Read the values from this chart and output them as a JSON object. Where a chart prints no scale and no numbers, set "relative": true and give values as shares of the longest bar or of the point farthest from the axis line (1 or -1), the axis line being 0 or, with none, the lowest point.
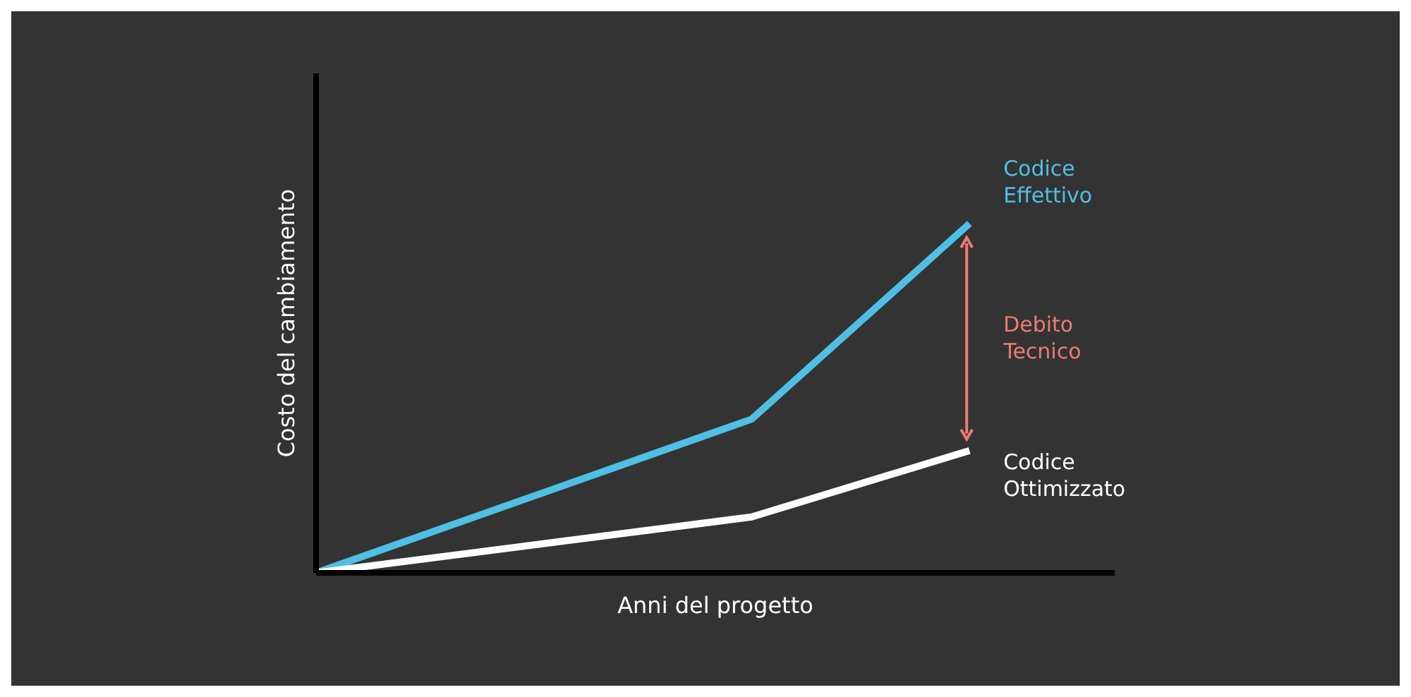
{
  "chart_data": {
    "type": "line",
    "relative": true,
    "xlabel": "Anni del progetto",
    "ylabel": "Costo del cambiamento",
    "categories": [
      null,
      null,
      null,
      null,
      null,
      null,
      null,
      null,
      null,
      null,
      null,
      null
    ],
    "series": [
      {
        "name": "Codice Effettivo",
        "color": "#4fbfe3",
        "values": [
          0,
          null,
          null,
          null,
          null,
          null,
          0.44,
          null,
          null,
          1,
          null,
          null
        ]
      },
      {
        "name": "Codice Ottimizzato",
        "color": "#ffffff",
        "values": [
          0,
          null,
          null,
          null,
          null,
          null,
          0.16,
          null,
          null,
          0.35,
          null,
          null
        ]
      }
    ],
    "annotations": [
      "Debito Tecnico"
    ]
  }
}
